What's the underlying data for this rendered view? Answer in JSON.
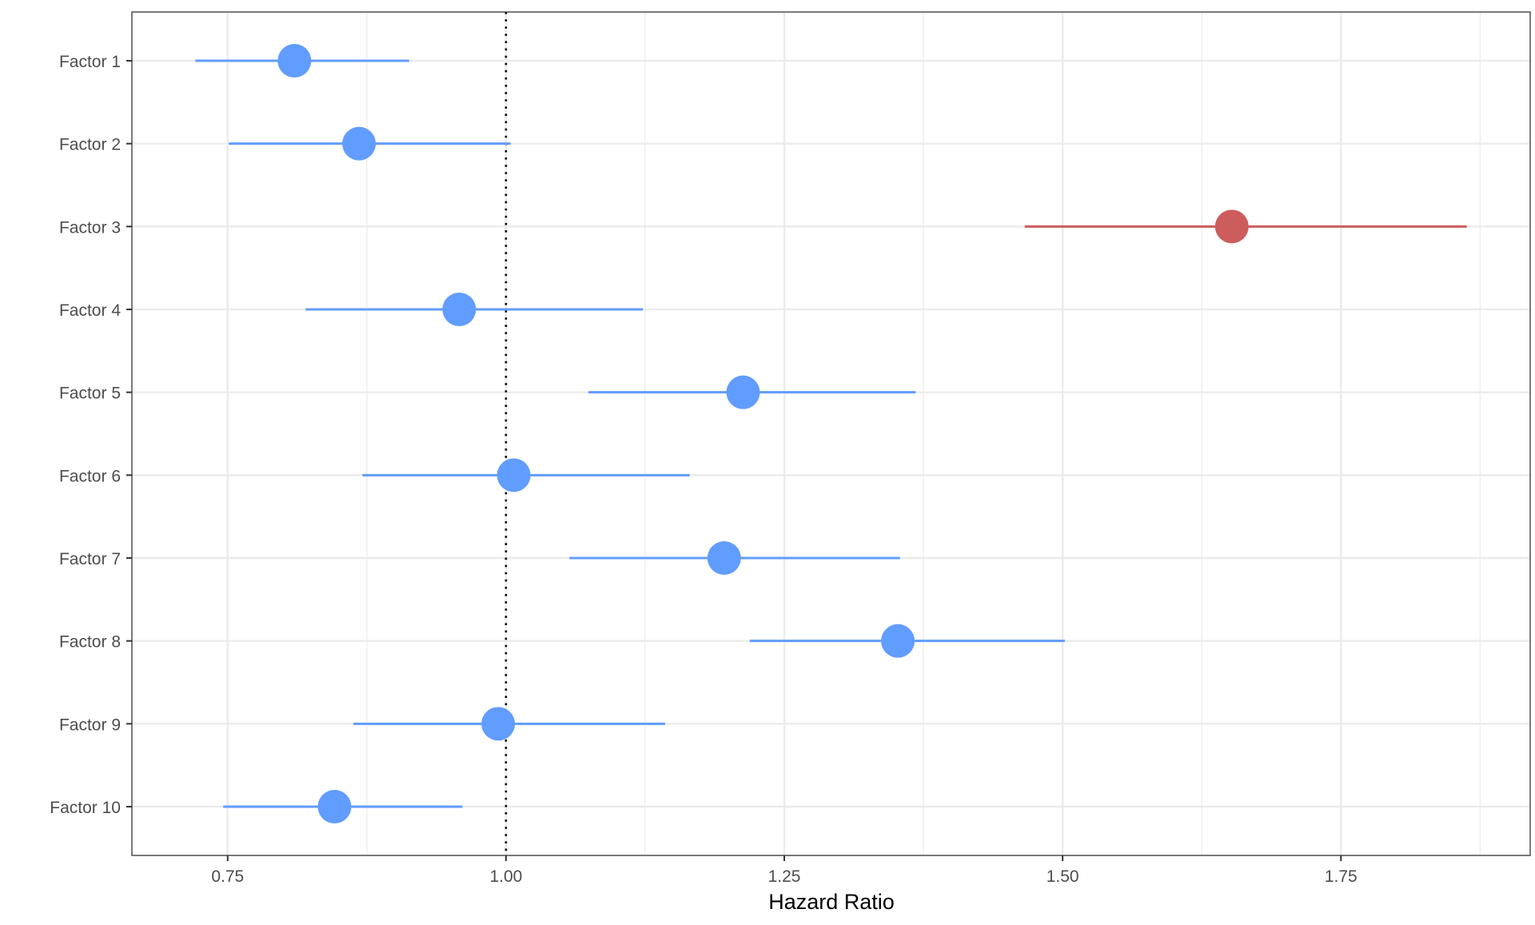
{
  "chart_data": {
    "type": "forest",
    "title": "",
    "xlabel": "Hazard Ratio",
    "ylabel": "",
    "xlim": [
      0.664,
      1.92
    ],
    "xticks": [
      0.75,
      1.0,
      1.25,
      1.5,
      1.75
    ],
    "xtick_labels": [
      "0.75",
      "1.00",
      "1.25",
      "1.50",
      "1.75"
    ],
    "reference_line": 1.0,
    "grid": true,
    "colors": {
      "default": "#619CFF",
      "highlight": "#CD5C5C"
    },
    "rows": [
      {
        "label": "Factor 1",
        "hr": 0.81,
        "lower": 0.721,
        "upper": 0.913,
        "highlight": false
      },
      {
        "label": "Factor 2",
        "hr": 0.868,
        "lower": 0.751,
        "upper": 1.004,
        "highlight": false
      },
      {
        "label": "Factor 3",
        "hr": 1.652,
        "lower": 1.466,
        "upper": 1.863,
        "highlight": true
      },
      {
        "label": "Factor 4",
        "hr": 0.958,
        "lower": 0.82,
        "upper": 1.123,
        "highlight": false
      },
      {
        "label": "Factor 5",
        "hr": 1.213,
        "lower": 1.074,
        "upper": 1.368,
        "highlight": false
      },
      {
        "label": "Factor 6",
        "hr": 1.007,
        "lower": 0.871,
        "upper": 1.165,
        "highlight": false
      },
      {
        "label": "Factor 7",
        "hr": 1.196,
        "lower": 1.057,
        "upper": 1.354,
        "highlight": false
      },
      {
        "label": "Factor 8",
        "hr": 1.352,
        "lower": 1.219,
        "upper": 1.502,
        "highlight": false
      },
      {
        "label": "Factor 9",
        "hr": 0.993,
        "lower": 0.863,
        "upper": 1.143,
        "highlight": false
      },
      {
        "label": "Factor 10",
        "hr": 0.846,
        "lower": 0.746,
        "upper": 0.961,
        "highlight": false
      }
    ]
  }
}
